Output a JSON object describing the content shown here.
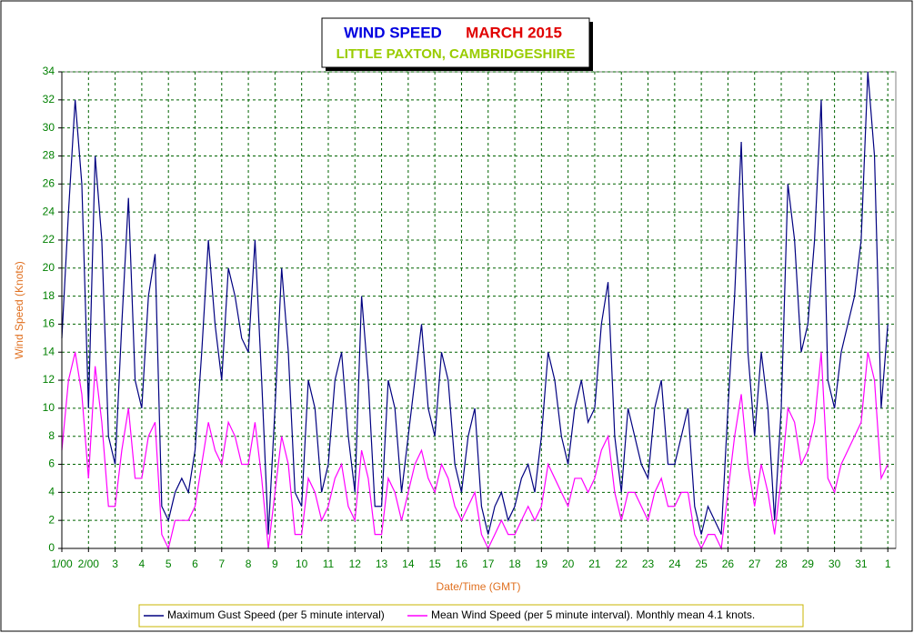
{
  "chart_data": {
    "type": "line",
    "title": "WIND SPEED",
    "title_date": "MARCH 2015",
    "subtitle": "LITTLE PAXTON, CAMBRIDGESHIRE",
    "y_label": "Wind Speed (Knots)",
    "x_label": "Date/Time (GMT)",
    "grid": true,
    "ylim": [
      0,
      34
    ],
    "yticks": [
      0,
      2,
      4,
      6,
      8,
      10,
      12,
      14,
      16,
      18,
      20,
      22,
      24,
      26,
      28,
      30,
      32,
      34
    ],
    "xlim": [
      0,
      31.3
    ],
    "xticks": [
      {
        "value": 0,
        "label": "1/00"
      },
      {
        "value": 1,
        "label": "2/00"
      },
      {
        "value": 2,
        "label": "3"
      },
      {
        "value": 3,
        "label": "4"
      },
      {
        "value": 4,
        "label": "5"
      },
      {
        "value": 5,
        "label": "6"
      },
      {
        "value": 6,
        "label": "7"
      },
      {
        "value": 7,
        "label": "8"
      },
      {
        "value": 8,
        "label": "9"
      },
      {
        "value": 9,
        "label": "10"
      },
      {
        "value": 10,
        "label": "11"
      },
      {
        "value": 11,
        "label": "12"
      },
      {
        "value": 12,
        "label": "13"
      },
      {
        "value": 13,
        "label": "14"
      },
      {
        "value": 14,
        "label": "15"
      },
      {
        "value": 15,
        "label": "16"
      },
      {
        "value": 16,
        "label": "17"
      },
      {
        "value": 17,
        "label": "18"
      },
      {
        "value": 18,
        "label": "19"
      },
      {
        "value": 19,
        "label": "20"
      },
      {
        "value": 20,
        "label": "21"
      },
      {
        "value": 21,
        "label": "22"
      },
      {
        "value": 22,
        "label": "23"
      },
      {
        "value": 23,
        "label": "24"
      },
      {
        "value": 24,
        "label": "25"
      },
      {
        "value": 25,
        "label": "26"
      },
      {
        "value": 26,
        "label": "27"
      },
      {
        "value": 27,
        "label": "28"
      },
      {
        "value": 28,
        "label": "29"
      },
      {
        "value": 29,
        "label": "30"
      },
      {
        "value": 30,
        "label": "31"
      },
      {
        "value": 31,
        "label": "1"
      }
    ],
    "x": [
      0,
      0.25,
      0.5,
      0.75,
      1,
      1.25,
      1.5,
      1.75,
      2,
      2.25,
      2.5,
      2.75,
      3,
      3.25,
      3.5,
      3.75,
      4,
      4.25,
      4.5,
      4.75,
      5,
      5.25,
      5.5,
      5.75,
      6,
      6.25,
      6.5,
      6.75,
      7,
      7.25,
      7.5,
      7.75,
      8,
      8.25,
      8.5,
      8.75,
      9,
      9.25,
      9.5,
      9.75,
      10,
      10.25,
      10.5,
      10.75,
      11,
      11.25,
      11.5,
      11.75,
      12,
      12.25,
      12.5,
      12.75,
      13,
      13.25,
      13.5,
      13.75,
      14,
      14.25,
      14.5,
      14.75,
      15,
      15.25,
      15.5,
      15.75,
      16,
      16.25,
      16.5,
      16.75,
      17,
      17.25,
      17.5,
      17.75,
      18,
      18.25,
      18.5,
      18.75,
      19,
      19.25,
      19.5,
      19.75,
      20,
      20.25,
      20.5,
      20.75,
      21,
      21.25,
      21.5,
      21.75,
      22,
      22.25,
      22.5,
      22.75,
      23,
      23.25,
      23.5,
      23.75,
      24,
      24.25,
      24.5,
      24.75,
      25,
      25.25,
      25.5,
      25.75,
      26,
      26.25,
      26.5,
      26.75,
      27,
      27.25,
      27.5,
      27.75,
      28,
      28.25,
      28.5,
      28.75,
      29,
      29.25,
      29.5,
      29.75,
      30,
      30.25,
      30.5,
      30.75,
      31
    ],
    "series": [
      {
        "name": "Maximum Gust Speed (per 5 minute interval)",
        "color": "#000080",
        "values": [
          15,
          24,
          32,
          26,
          10,
          28,
          22,
          8,
          6,
          16,
          25,
          12,
          10,
          18,
          21,
          3,
          2,
          4,
          5,
          4,
          7,
          14,
          22,
          16,
          12,
          20,
          18,
          15,
          14,
          22,
          12,
          1,
          10,
          20,
          14,
          4,
          3,
          12,
          10,
          4,
          6,
          12,
          14,
          8,
          4,
          18,
          12,
          3,
          3,
          12,
          10,
          4,
          8,
          12,
          16,
          10,
          8,
          14,
          12,
          6,
          4,
          8,
          10,
          3,
          1,
          3,
          4,
          2,
          3,
          5,
          6,
          4,
          8,
          14,
          12,
          8,
          6,
          10,
          12,
          9,
          10,
          16,
          19,
          8,
          4,
          10,
          8,
          6,
          5,
          10,
          12,
          6,
          6,
          8,
          10,
          3,
          1,
          3,
          2,
          1,
          10,
          18,
          29,
          14,
          8,
          14,
          10,
          2,
          10,
          26,
          22,
          14,
          16,
          22,
          32,
          12,
          10,
          14,
          16,
          18,
          22,
          34,
          28,
          10,
          16
        ]
      },
      {
        "name": "Mean Wind Speed (per 5 minute interval). Monthly mean 4.1 knots.",
        "color": "#ff00ff",
        "values": [
          7,
          12,
          14,
          11,
          5,
          13,
          9,
          3,
          3,
          7,
          10,
          5,
          5,
          8,
          9,
          1,
          0,
          2,
          2,
          2,
          3,
          6,
          9,
          7,
          6,
          9,
          8,
          6,
          6,
          9,
          5,
          0,
          4,
          8,
          6,
          1,
          1,
          5,
          4,
          2,
          3,
          5,
          6,
          3,
          2,
          7,
          5,
          1,
          1,
          5,
          4,
          2,
          4,
          6,
          7,
          5,
          4,
          6,
          5,
          3,
          2,
          3,
          4,
          1,
          0,
          1,
          2,
          1,
          1,
          2,
          3,
          2,
          3,
          6,
          5,
          4,
          3,
          5,
          5,
          4,
          5,
          7,
          8,
          4,
          2,
          4,
          4,
          3,
          2,
          4,
          5,
          3,
          3,
          4,
          4,
          1,
          0,
          1,
          1,
          0,
          4,
          8,
          11,
          6,
          3,
          6,
          4,
          1,
          5,
          10,
          9,
          6,
          7,
          9,
          14,
          5,
          4,
          6,
          7,
          8,
          9,
          14,
          12,
          5,
          6
        ]
      }
    ]
  }
}
